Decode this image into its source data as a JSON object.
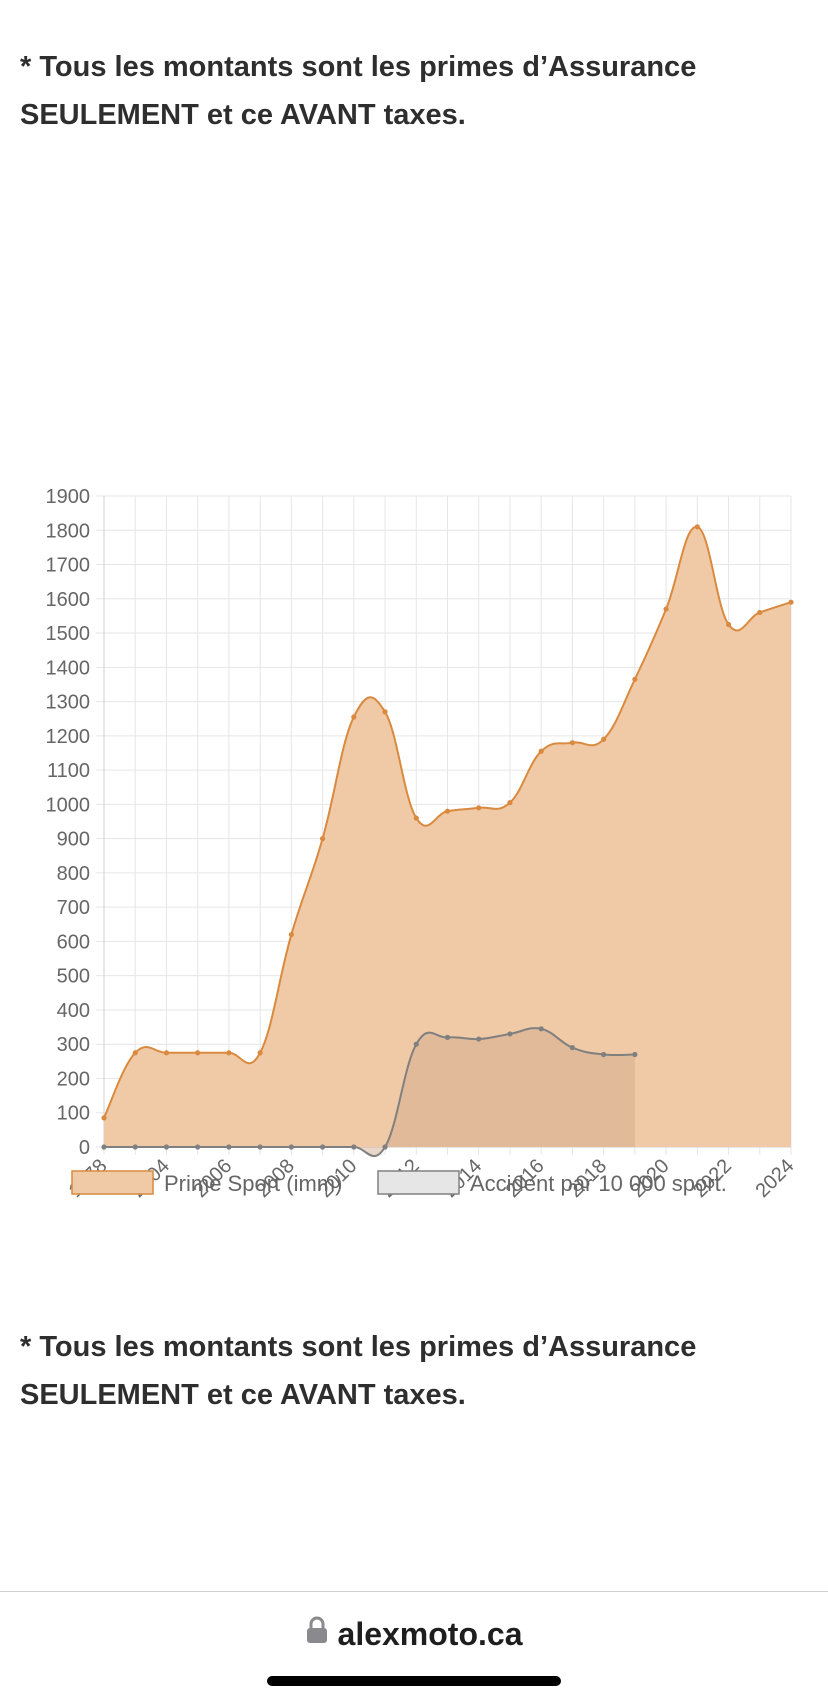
{
  "notes": {
    "top": "* Tous les montants sont les primes d’Assurance SEULEMENT et ce AVANT taxes.",
    "bottom": "* Tous les montants sont les primes d’Assurance SEULEMENT et ce AVANT taxes."
  },
  "browser": {
    "url": "alexmoto.ca",
    "lock_icon": "lock-icon"
  },
  "colors": {
    "prime_line": "#d98a3f",
    "prime_fill": "#f0c9a6",
    "accident_line": "#808080",
    "accident_fill": "#e6e6e6",
    "grid": "#e6e6e6",
    "text": "#666666"
  },
  "chart_data": {
    "type": "line",
    "x": [
      "1978",
      "2003",
      "2004",
      "2005",
      "2006",
      "2007",
      "2008",
      "2009",
      "2010",
      "2011",
      "2012",
      "2013",
      "2014",
      "2015",
      "2016",
      "2017",
      "2018",
      "2019",
      "2020",
      "2021",
      "2022",
      "2023",
      "2024"
    ],
    "x_tick_labels": [
      "1978",
      "2004",
      "2006",
      "2008",
      "2010",
      "2012",
      "2014",
      "2016",
      "2018",
      "2020",
      "2022",
      "2024"
    ],
    "y_ticks": [
      0,
      100,
      200,
      300,
      400,
      500,
      600,
      700,
      800,
      900,
      1000,
      1100,
      1200,
      1300,
      1400,
      1500,
      1600,
      1700,
      1800,
      1900
    ],
    "ylim": [
      0,
      1900
    ],
    "grid": true,
    "legend_position": "bottom",
    "series": [
      {
        "name": "Prime Sport (imm)",
        "fill": true,
        "values": [
          85,
          275,
          275,
          275,
          275,
          275,
          620,
          900,
          1255,
          1270,
          960,
          980,
          990,
          1005,
          1155,
          1180,
          1190,
          1365,
          1570,
          1810,
          1525,
          1560,
          1590
        ]
      },
      {
        "name": "Accident par 10 000 sport.",
        "fill": true,
        "values": [
          0,
          0,
          0,
          0,
          0,
          0,
          0,
          0,
          0,
          0,
          300,
          320,
          315,
          330,
          345,
          290,
          270,
          270,
          null,
          null,
          null,
          null,
          null
        ]
      }
    ]
  }
}
